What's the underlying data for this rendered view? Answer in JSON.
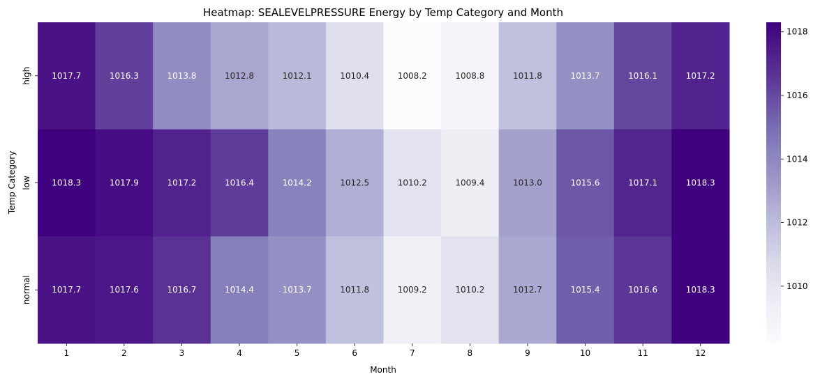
{
  "chart_data": {
    "type": "heatmap",
    "title": "Heatmap: SEALEVELPRESSURE Energy by Temp Category and Month",
    "xlabel": "Month",
    "ylabel": "Temp Category",
    "x_categories": [
      "1",
      "2",
      "3",
      "4",
      "5",
      "6",
      "7",
      "8",
      "9",
      "10",
      "11",
      "12"
    ],
    "y_categories": [
      "high",
      "low",
      "normal"
    ],
    "values": [
      [
        1017.7,
        1016.3,
        1013.8,
        1012.8,
        1012.1,
        1010.4,
        1008.2,
        1008.8,
        1011.8,
        1013.7,
        1016.1,
        1017.2
      ],
      [
        1018.3,
        1017.9,
        1017.2,
        1016.4,
        1014.2,
        1012.5,
        1010.2,
        1009.4,
        1013.0,
        1015.6,
        1017.1,
        1018.3
      ],
      [
        1017.7,
        1017.6,
        1016.7,
        1014.4,
        1013.7,
        1011.8,
        1009.2,
        1010.2,
        1012.7,
        1015.4,
        1016.6,
        1018.3
      ]
    ],
    "value_format": "0.1f",
    "colormap": "Purples",
    "vmin": 1008.2,
    "vmax": 1018.3,
    "colorbar": {
      "ticks": [
        "1010",
        "1012",
        "1014",
        "1016",
        "1018"
      ],
      "placement": "right"
    },
    "grid": false,
    "annotations": "cell values shown"
  }
}
